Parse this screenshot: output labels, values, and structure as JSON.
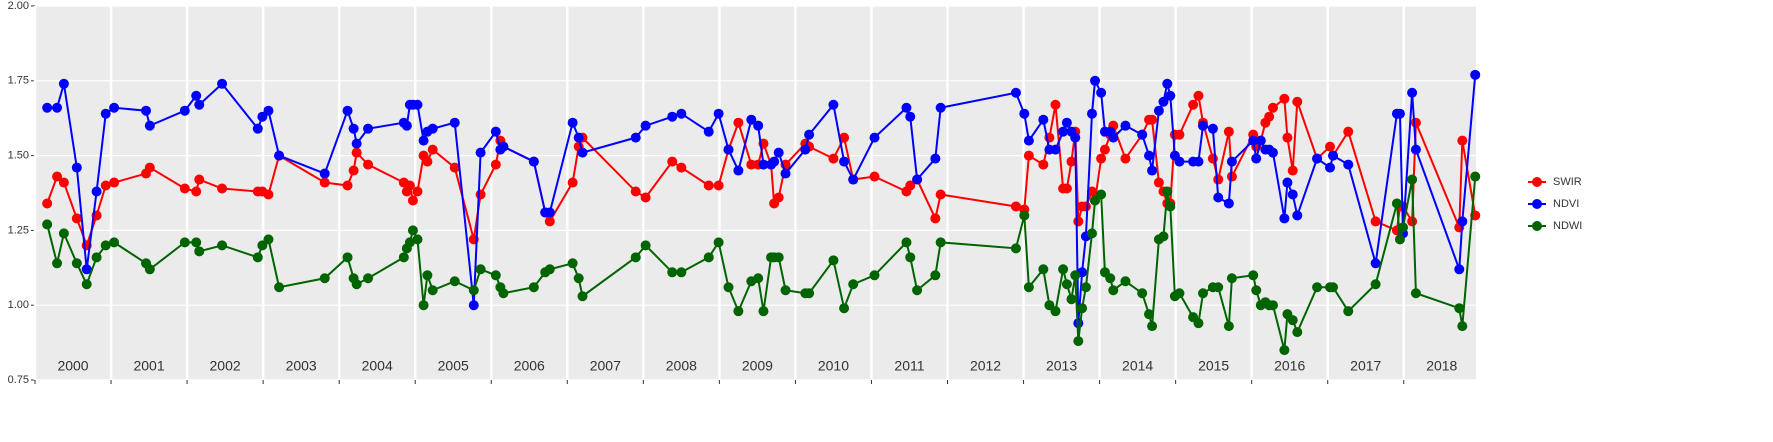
{
  "chart_data": {
    "type": "line",
    "x": [
      2000.16,
      2000.29,
      2000.38,
      2000.55,
      2000.68,
      2000.81,
      2000.93,
      2001.04,
      2001.46,
      2001.51,
      2001.97,
      2002.12,
      2002.16,
      2002.46,
      2002.93,
      2002.99,
      2003.07,
      2003.21,
      2003.81,
      2004.11,
      2004.19,
      2004.23,
      2004.38,
      2004.85,
      2004.89,
      2004.93,
      2004.97,
      2005.03,
      2005.11,
      2005.16,
      2005.23,
      2005.52,
      2005.77,
      2005.86,
      2006.06,
      2006.12,
      2006.16,
      2006.56,
      2006.71,
      2006.77,
      2007.07,
      2007.15,
      2007.2,
      2007.9,
      2008.03,
      2008.38,
      2008.5,
      2008.86,
      2008.99,
      2009.12,
      2009.25,
      2009.42,
      2009.51,
      2009.58,
      2009.68,
      2009.72,
      2009.78,
      2009.87,
      2010.13,
      2010.18,
      2010.5,
      2010.64,
      2010.76,
      2011.04,
      2011.46,
      2011.51,
      2011.6,
      2011.84,
      2011.91,
      2012.9,
      2013.01,
      2013.07,
      2013.26,
      2013.34,
      2013.42,
      2013.52,
      2013.57,
      2013.63,
      2013.68,
      2013.72,
      2013.77,
      2013.82,
      2013.9,
      2013.94,
      2014.02,
      2014.07,
      2014.14,
      2014.18,
      2014.34,
      2014.56,
      2014.65,
      2014.69,
      2014.78,
      2014.84,
      2014.89,
      2014.93,
      2014.99,
      2015.05,
      2015.23,
      2015.3,
      2015.36,
      2015.49,
      2015.56,
      2015.7,
      2015.74,
      2016.02,
      2016.06,
      2016.12,
      2016.18,
      2016.23,
      2016.28,
      2016.43,
      2016.47,
      2016.54,
      2016.6,
      2016.86,
      2017.03,
      2017.07,
      2017.27,
      2017.63,
      2017.91,
      2017.95,
      2017.99,
      2018.11,
      2018.16,
      2018.73,
      2018.77,
      2018.94
    ],
    "series": [
      {
        "name": "SWIR",
        "color": "#ff0000",
        "values": [
          1.34,
          1.43,
          1.41,
          1.29,
          1.2,
          1.3,
          1.4,
          1.41,
          1.44,
          1.46,
          1.39,
          1.38,
          1.42,
          1.39,
          1.38,
          1.38,
          1.37,
          1.5,
          1.41,
          1.4,
          1.45,
          1.51,
          1.47,
          1.41,
          1.38,
          1.4,
          1.35,
          1.38,
          1.5,
          1.48,
          1.52,
          1.46,
          1.22,
          1.37,
          1.47,
          1.55,
          1.53,
          1.48,
          1.31,
          1.28,
          1.41,
          1.53,
          1.56,
          1.38,
          1.36,
          1.48,
          1.46,
          1.4,
          1.4,
          1.52,
          1.61,
          1.47,
          1.47,
          1.54,
          1.47,
          1.34,
          1.36,
          1.47,
          1.54,
          1.53,
          1.49,
          1.56,
          1.42,
          1.43,
          1.38,
          1.4,
          1.42,
          1.29,
          1.37,
          1.33,
          1.32,
          1.5,
          1.47,
          1.56,
          1.67,
          1.39,
          1.39,
          1.48,
          1.58,
          1.28,
          1.33,
          1.33,
          1.38,
          1.35,
          1.49,
          1.52,
          1.57,
          1.6,
          1.49,
          1.57,
          1.62,
          1.62,
          1.41,
          1.38,
          1.34,
          1.34,
          1.57,
          1.57,
          1.67,
          1.7,
          1.61,
          1.49,
          1.42,
          1.58,
          1.43,
          1.57,
          1.53,
          1.55,
          1.61,
          1.63,
          1.66,
          1.69,
          1.56,
          1.45,
          1.68,
          1.49,
          1.53,
          1.5,
          1.58,
          1.28,
          1.25,
          1.33,
          1.33,
          1.28,
          1.61,
          1.26,
          1.55,
          1.3
        ]
      },
      {
        "name": "NDVI",
        "color": "#0000ff",
        "values": [
          1.66,
          1.66,
          1.74,
          1.46,
          1.12,
          1.38,
          1.64,
          1.66,
          1.65,
          1.6,
          1.65,
          1.7,
          1.67,
          1.74,
          1.59,
          1.63,
          1.65,
          1.5,
          1.44,
          1.65,
          1.59,
          1.54,
          1.59,
          1.61,
          1.6,
          1.67,
          1.67,
          1.67,
          1.55,
          1.58,
          1.59,
          1.61,
          1.0,
          1.51,
          1.58,
          1.52,
          1.53,
          1.48,
          1.31,
          1.31,
          1.61,
          1.56,
          1.51,
          1.56,
          1.6,
          1.63,
          1.64,
          1.58,
          1.64,
          1.52,
          1.45,
          1.62,
          1.6,
          1.47,
          1.47,
          1.48,
          1.51,
          1.44,
          1.52,
          1.57,
          1.67,
          1.48,
          1.42,
          1.56,
          1.66,
          1.63,
          1.42,
          1.49,
          1.66,
          1.71,
          1.64,
          1.55,
          1.62,
          1.52,
          1.52,
          1.58,
          1.61,
          1.58,
          1.56,
          0.94,
          1.11,
          1.23,
          1.64,
          1.75,
          1.71,
          1.58,
          1.58,
          1.56,
          1.6,
          1.57,
          1.5,
          1.45,
          1.65,
          1.68,
          1.74,
          1.7,
          1.5,
          1.48,
          1.48,
          1.48,
          1.6,
          1.59,
          1.36,
          1.34,
          1.48,
          1.55,
          1.49,
          1.55,
          1.52,
          1.52,
          1.51,
          1.29,
          1.41,
          1.37,
          1.3,
          1.49,
          1.46,
          1.5,
          1.47,
          1.14,
          1.64,
          1.64,
          1.24,
          1.71,
          1.52,
          1.12,
          1.28,
          1.77
        ]
      },
      {
        "name": "NDWI",
        "color": "#006400",
        "values": [
          1.27,
          1.14,
          1.24,
          1.14,
          1.07,
          1.16,
          1.2,
          1.21,
          1.14,
          1.12,
          1.21,
          1.21,
          1.18,
          1.2,
          1.16,
          1.2,
          1.22,
          1.06,
          1.09,
          1.16,
          1.09,
          1.07,
          1.09,
          1.16,
          1.19,
          1.21,
          1.25,
          1.22,
          1.0,
          1.1,
          1.05,
          1.08,
          1.05,
          1.12,
          1.1,
          1.06,
          1.04,
          1.06,
          1.11,
          1.12,
          1.14,
          1.09,
          1.03,
          1.16,
          1.2,
          1.11,
          1.11,
          1.16,
          1.21,
          1.06,
          0.98,
          1.08,
          1.09,
          0.98,
          1.16,
          1.16,
          1.16,
          1.05,
          1.04,
          1.04,
          1.15,
          0.99,
          1.07,
          1.1,
          1.21,
          1.16,
          1.05,
          1.1,
          1.21,
          1.19,
          1.3,
          1.06,
          1.12,
          1.0,
          0.98,
          1.12,
          1.07,
          1.02,
          1.1,
          0.88,
          0.99,
          1.06,
          1.24,
          1.35,
          1.37,
          1.11,
          1.09,
          1.05,
          1.08,
          1.04,
          0.97,
          0.93,
          1.22,
          1.23,
          1.38,
          1.33,
          1.03,
          1.04,
          0.96,
          0.94,
          1.04,
          1.06,
          1.06,
          0.93,
          1.09,
          1.1,
          1.05,
          1.0,
          1.01,
          1.0,
          1.0,
          0.85,
          0.97,
          0.95,
          0.91,
          1.06,
          1.06,
          1.06,
          0.98,
          1.07,
          1.34,
          1.22,
          1.26,
          1.42,
          1.04,
          0.99,
          0.93,
          1.43
        ]
      }
    ],
    "xlim": [
      2000,
      2018.95
    ],
    "xticks": [
      {
        "value": 2000,
        "label": "2000"
      },
      {
        "value": 2001,
        "label": "2001"
      },
      {
        "value": 2002,
        "label": "2002"
      },
      {
        "value": 2003,
        "label": "2003"
      },
      {
        "value": 2004,
        "label": "2004"
      },
      {
        "value": 2005,
        "label": "2005"
      },
      {
        "value": 2006,
        "label": "2006"
      },
      {
        "value": 2007,
        "label": "2007"
      },
      {
        "value": 2008,
        "label": "2008"
      },
      {
        "value": 2009,
        "label": "2009"
      },
      {
        "value": 2010,
        "label": "2010"
      },
      {
        "value": 2011,
        "label": "2011"
      },
      {
        "value": 2012,
        "label": "2012"
      },
      {
        "value": 2013,
        "label": "2013"
      },
      {
        "value": 2014,
        "label": "2014"
      },
      {
        "value": 2015,
        "label": "2015"
      },
      {
        "value": 2016,
        "label": "2016"
      },
      {
        "value": 2017,
        "label": "2017"
      },
      {
        "value": 2018,
        "label": "2018"
      }
    ],
    "ylim": [
      0.75,
      2.0
    ],
    "yticks": [
      {
        "value": 0.75,
        "label": "0.75"
      },
      {
        "value": 1.0,
        "label": "1.00"
      },
      {
        "value": 1.25,
        "label": "1.25"
      },
      {
        "value": 1.5,
        "label": "1.50"
      },
      {
        "value": 1.75,
        "label": "1.75"
      },
      {
        "value": 2.0,
        "label": "2.00"
      }
    ],
    "grid": true,
    "legend": "right"
  }
}
